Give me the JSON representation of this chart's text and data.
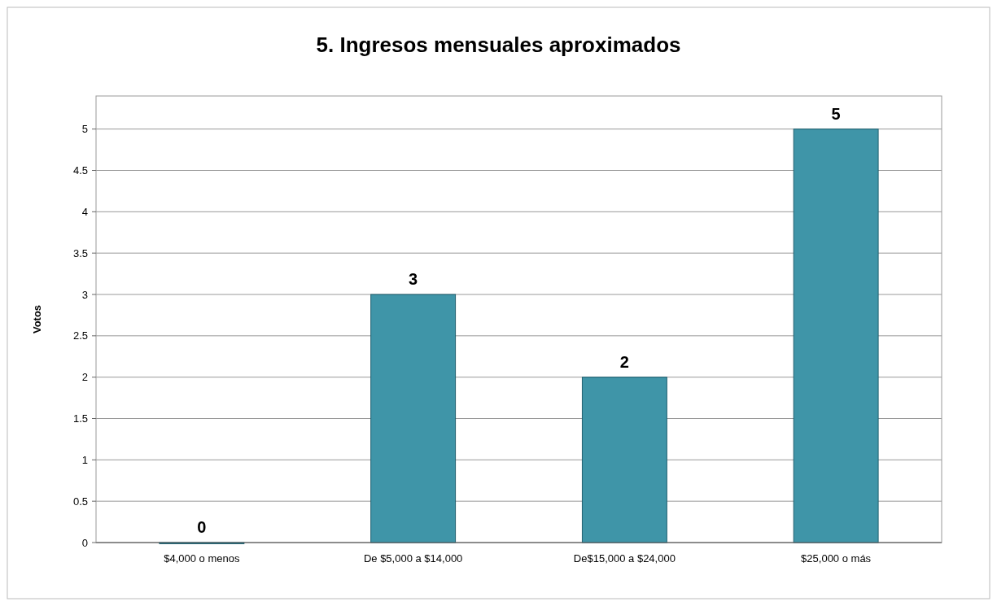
{
  "chart_data": {
    "type": "bar",
    "title": "5. Ingresos mensuales aproximados",
    "ylabel": "Votos",
    "categories": [
      "$4,000 o menos",
      "De $5,000 a $14,000",
      "De$15,000 a $24,000",
      "$25,000 o más"
    ],
    "values": [
      0,
      3,
      2,
      5
    ],
    "color": "#3f95a8",
    "ylim": [
      0,
      5.4
    ],
    "yticks": [
      0,
      0.5,
      1,
      1.5,
      2,
      2.5,
      3,
      3.5,
      4,
      4.5,
      5
    ],
    "grid": "y",
    "data_labels": true
  }
}
